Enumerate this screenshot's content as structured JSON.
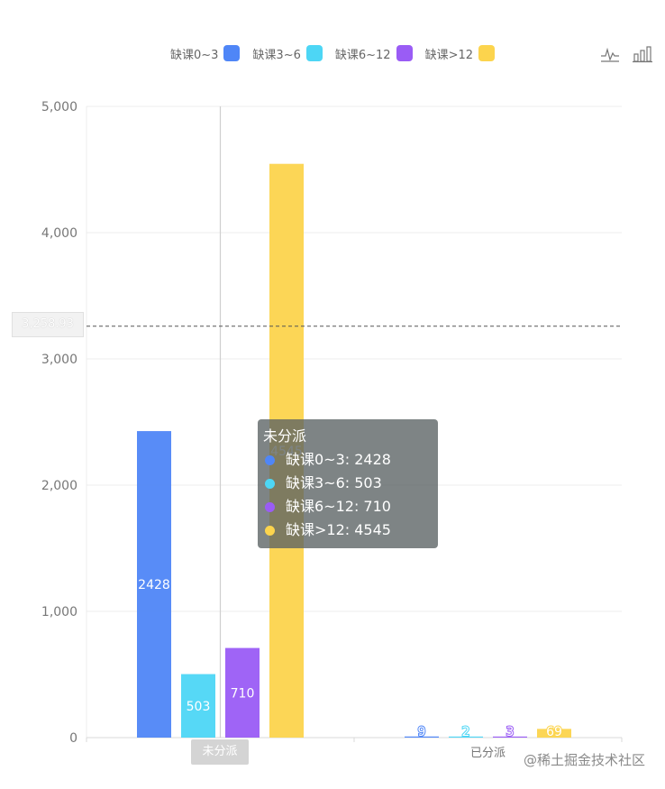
{
  "legend": [
    {
      "label": "缺课0~3",
      "color": "#4f86f7"
    },
    {
      "label": "缺课3~6",
      "color": "#4dd6f5"
    },
    {
      "label": "缺课6~12",
      "color": "#9a5cf5"
    },
    {
      "label": "缺课>12",
      "color": "#fcd44d"
    }
  ],
  "toolbox": {
    "line_icon": "line-chart-icon",
    "bar_icon": "bar-chart-icon"
  },
  "tooltip": {
    "title": "未分派",
    "rows": [
      {
        "text": "缺课0~3: 2428",
        "color": "#4f86f7"
      },
      {
        "text": "缺课3~6: 503",
        "color": "#4dd6f5"
      },
      {
        "text": "缺课6~12: 710",
        "color": "#9a5cf5"
      },
      {
        "text": "缺课>12: 4545",
        "color": "#fcd44d"
      }
    ]
  },
  "average_label": "3,258.93",
  "watermark": "@稀土掘金技术社区",
  "chart_data": {
    "type": "bar",
    "categories": [
      "未分派",
      "已分派"
    ],
    "series": [
      {
        "name": "缺课0~3",
        "values": [
          2428,
          9
        ],
        "color": "#4f86f7"
      },
      {
        "name": "缺课3~6",
        "values": [
          503,
          2
        ],
        "color": "#4dd6f5"
      },
      {
        "name": "缺课6~12",
        "values": [
          710,
          3
        ],
        "color": "#9a5cf5"
      },
      {
        "name": "缺课>12",
        "values": [
          4545,
          69
        ],
        "color": "#fcd44d"
      }
    ],
    "ylim": [
      0,
      5000
    ],
    "yticks": [
      "0",
      "1,000",
      "2,000",
      "3,000",
      "4,000",
      "5,000"
    ],
    "average": 3258.93,
    "grid": true,
    "legend_position": "top"
  }
}
